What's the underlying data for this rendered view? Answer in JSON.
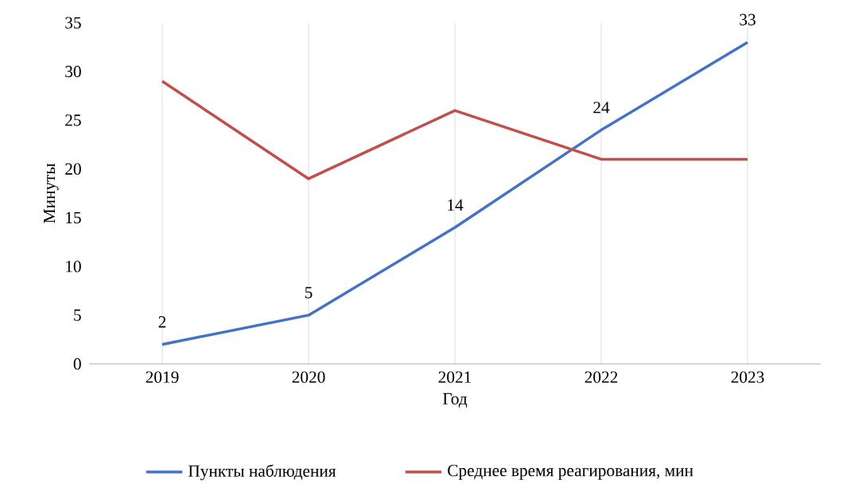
{
  "chart_data": {
    "type": "line",
    "xlabel": "Год",
    "ylabel": "Минуты",
    "categories": [
      "2019",
      "2020",
      "2021",
      "2022",
      "2023"
    ],
    "series": [
      {
        "name": "Пункты наблюдения",
        "color": "#4472c4",
        "values": [
          2,
          5,
          14,
          24,
          33
        ],
        "value_labels": [
          "2",
          "5",
          "14",
          "24",
          "33"
        ]
      },
      {
        "name": "Среднее время реагирования, мин",
        "color": "#c0504d",
        "values": [
          29,
          19,
          26,
          21,
          21
        ]
      }
    ],
    "ylim": [
      0,
      35
    ],
    "yticks": [
      0,
      5,
      10,
      15,
      20,
      25,
      30,
      35
    ],
    "grid": "x",
    "legend": "bottom"
  }
}
